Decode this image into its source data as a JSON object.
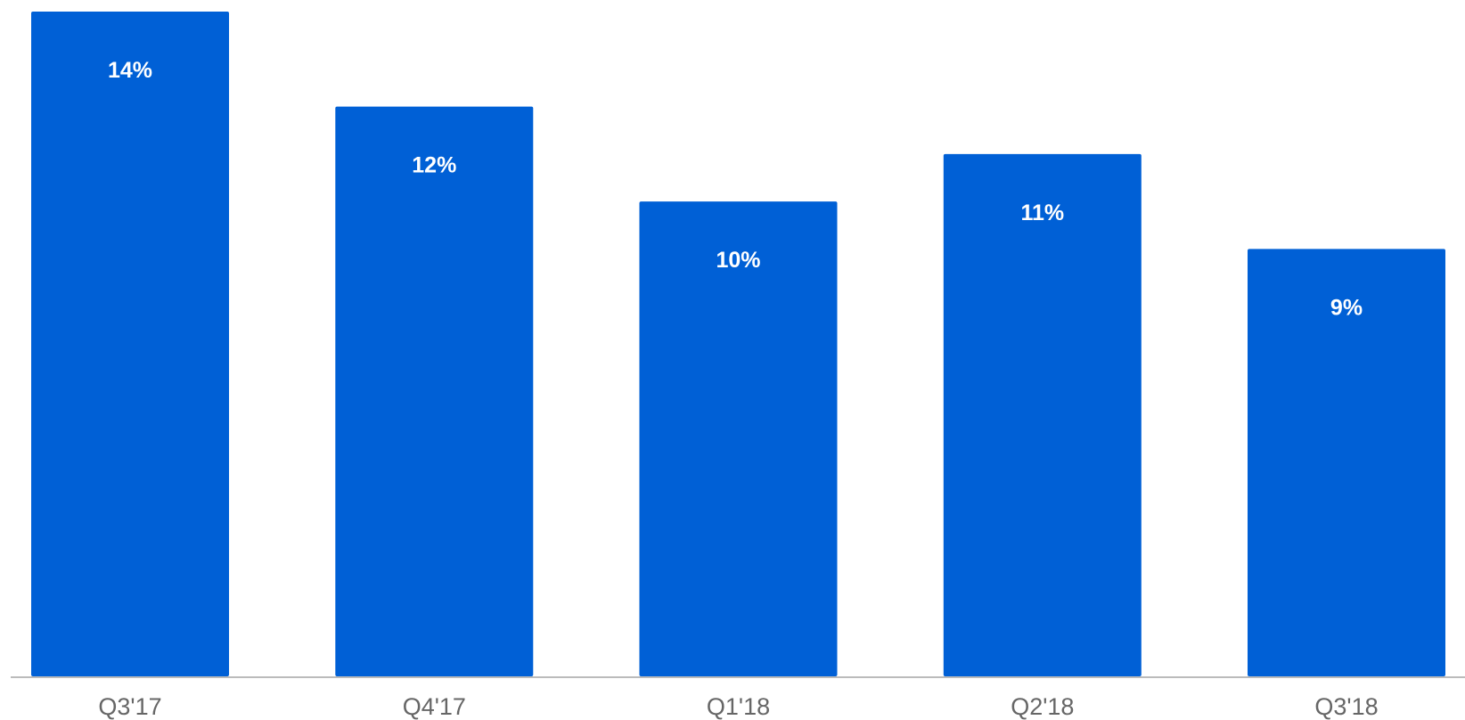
{
  "chart_data": {
    "type": "bar",
    "categories": [
      "Q3'17",
      "Q4'17",
      "Q1'18",
      "Q2'18",
      "Q3'18"
    ],
    "values": [
      14,
      12,
      10,
      11,
      9
    ],
    "data_labels": [
      "14%",
      "12%",
      "10%",
      "11%",
      "9%"
    ],
    "title": "",
    "xlabel": "",
    "ylabel": "",
    "ylim": [
      0,
      14
    ],
    "grid": false,
    "legend": "none",
    "colors": {
      "bar": "#0060d6",
      "data_label": "#ffffff",
      "tick_label": "#666666",
      "baseline": "#bbbbbb",
      "background": "#ffffff"
    }
  }
}
